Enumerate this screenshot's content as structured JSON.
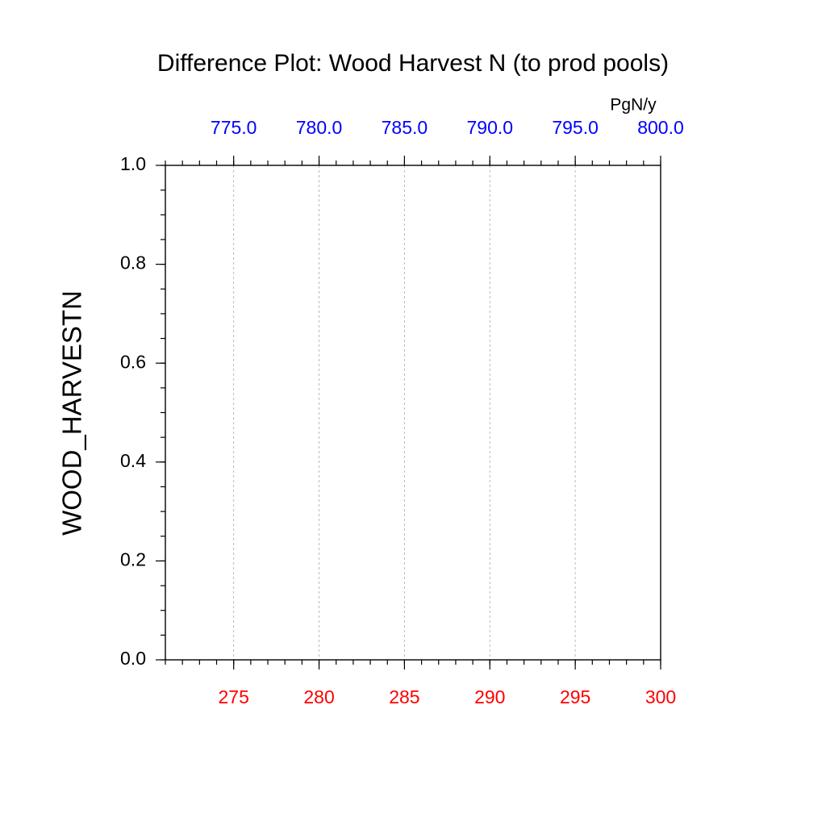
{
  "chart_data": {
    "type": "line",
    "title": "Difference Plot: Wood Harvest N (to prod pools)",
    "ylabel": "WOOD_HARVESTN",
    "x2label": "PgN/y",
    "xlim": [
      271,
      300
    ],
    "xticks": [
      275,
      280,
      285,
      290,
      295,
      300
    ],
    "xtick_color": "#ff0000",
    "x2lim": [
      771,
      800
    ],
    "x2ticks": [
      {
        "value": 775,
        "label": "775.0"
      },
      {
        "value": 780,
        "label": "780.0"
      },
      {
        "value": 785,
        "label": "785.0"
      },
      {
        "value": 790,
        "label": "790.0"
      },
      {
        "value": 795,
        "label": "795.0"
      },
      {
        "value": 800,
        "label": "800.0"
      }
    ],
    "x2tick_color": "#0000ff",
    "ylim": [
      0,
      1
    ],
    "yticks": [
      {
        "value": 0,
        "label": "0.0"
      },
      {
        "value": 0.2,
        "label": "0.2"
      },
      {
        "value": 0.4,
        "label": "0.4"
      },
      {
        "value": 0.6,
        "label": "0.6"
      },
      {
        "value": 0.8,
        "label": "0.8"
      },
      {
        "value": 1,
        "label": "1.0"
      }
    ],
    "grid": true
  }
}
